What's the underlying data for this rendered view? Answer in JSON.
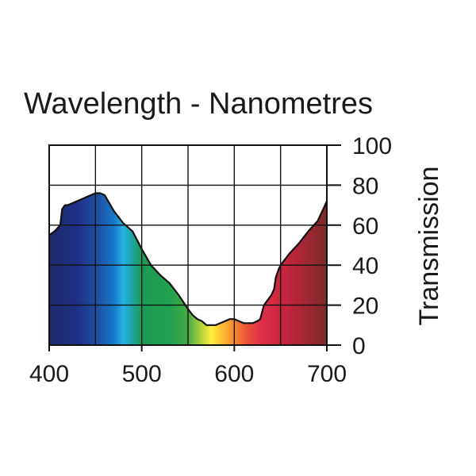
{
  "chart_data": {
    "type": "area",
    "title": "Wavelength - Nanometres",
    "xlabel": "Wavelength - Nanometres",
    "ylabel": "Transmission",
    "xlim": [
      400,
      700
    ],
    "ylim": [
      0,
      100
    ],
    "x_ticks": [
      400,
      500,
      600,
      700
    ],
    "x_gridlines": [
      400,
      450,
      500,
      550,
      600,
      650,
      700
    ],
    "y_ticks": [
      0,
      20,
      40,
      60,
      80,
      100
    ],
    "grid": true,
    "y_axis_position": "right",
    "fill": "visible-spectrum-gradient",
    "spectrum_stops": [
      {
        "wavelength": 400,
        "color": "#1e2a6a"
      },
      {
        "wavelength": 430,
        "color": "#1f2f85"
      },
      {
        "wavelength": 455,
        "color": "#1f55a8"
      },
      {
        "wavelength": 470,
        "color": "#1778c8"
      },
      {
        "wavelength": 480,
        "color": "#25b2e6"
      },
      {
        "wavelength": 490,
        "color": "#1fa3a0"
      },
      {
        "wavelength": 500,
        "color": "#1c9b55"
      },
      {
        "wavelength": 530,
        "color": "#20a050"
      },
      {
        "wavelength": 550,
        "color": "#46a944"
      },
      {
        "wavelength": 565,
        "color": "#b7d63a"
      },
      {
        "wavelength": 575,
        "color": "#ffef3d"
      },
      {
        "wavelength": 585,
        "color": "#ffc433"
      },
      {
        "wavelength": 600,
        "color": "#f68a2e"
      },
      {
        "wavelength": 615,
        "color": "#ea4c3a"
      },
      {
        "wavelength": 630,
        "color": "#e02e48"
      },
      {
        "wavelength": 660,
        "color": "#c0243c"
      },
      {
        "wavelength": 700,
        "color": "#7a2a2a"
      }
    ],
    "series": [
      {
        "name": "Transmission",
        "x": [
          400,
          406,
          412,
          414,
          417,
          420,
          430,
          440,
          450,
          455,
          460,
          465,
          470,
          480,
          490,
          500,
          510,
          520,
          530,
          540,
          550,
          555,
          560,
          565,
          570,
          575,
          580,
          585,
          590,
          595,
          600,
          605,
          610,
          615,
          620,
          625,
          628,
          632,
          640,
          643,
          645,
          648,
          650,
          660,
          670,
          680,
          690,
          695,
          700
        ],
        "values": [
          55,
          57,
          60,
          68,
          70,
          70,
          72,
          74,
          76,
          76,
          75,
          71,
          67,
          61,
          57,
          48,
          40,
          35,
          31,
          25,
          18,
          15,
          13,
          12,
          10,
          10,
          10,
          11,
          12,
          13,
          13,
          12,
          11,
          11,
          11,
          12,
          13,
          20,
          25,
          28,
          34,
          38,
          40,
          46,
          51,
          57,
          62,
          67,
          72
        ]
      }
    ]
  }
}
